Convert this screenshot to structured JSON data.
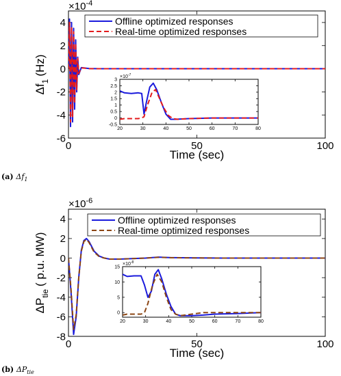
{
  "chart_data": [
    {
      "type": "line",
      "caption_label": "(a)",
      "caption_text": "Δf",
      "caption_sub": "1",
      "xlabel": "Time (sec)",
      "ylabel_main": "Δf",
      "ylabel_sub": "1",
      "ylabel_unit": "(Hz)",
      "exponent_base": "×10",
      "exponent_power": "-4",
      "xlim": [
        0,
        100
      ],
      "ylim": [
        -6,
        5
      ],
      "x_ticks": [
        "0",
        "50",
        "100"
      ],
      "y_ticks": [
        "4",
        "2",
        "0",
        "-2",
        "-4",
        "-6"
      ],
      "y_tick_values": [
        4,
        2,
        0,
        -2,
        -4,
        -6
      ],
      "legend_position": "top-right",
      "series": [
        {
          "name": "Offline optimized responses",
          "color": "#1a1adc",
          "dash": "solid",
          "x": [
            0,
            0.4,
            0.8,
            1.2,
            1.6,
            2.0,
            2.4,
            2.8,
            3.2,
            3.6,
            4.0,
            5,
            8,
            12,
            20,
            30,
            40,
            60,
            80,
            100
          ],
          "y": [
            0,
            4.3,
            -5.0,
            4.0,
            -4.6,
            3.5,
            -3.5,
            2.5,
            -2.0,
            1.0,
            -0.5,
            0.1,
            0.02,
            0,
            0,
            0,
            0,
            0,
            0,
            0
          ]
        },
        {
          "name": "Real-time optimized responses",
          "color": "#e31a1c",
          "dash": "dashed",
          "x": [
            0,
            0.4,
            0.8,
            1.2,
            1.6,
            2.0,
            2.4,
            2.8,
            3.2,
            3.6,
            4.0,
            5,
            8,
            12,
            20,
            30,
            40,
            60,
            80,
            100
          ],
          "y": [
            0,
            4.0,
            -4.6,
            3.6,
            -4.2,
            3.2,
            -3.0,
            2.2,
            -1.8,
            0.9,
            -0.4,
            0.08,
            0.01,
            0,
            0,
            0,
            0,
            0,
            0,
            0
          ]
        }
      ],
      "inset": {
        "xlim": [
          20,
          80
        ],
        "ylim": [
          -0.5,
          3
        ],
        "x_ticks": [
          "20",
          "30",
          "40",
          "50",
          "60",
          "70",
          "80"
        ],
        "x_tick_values": [
          20,
          30,
          40,
          50,
          60,
          70,
          80
        ],
        "y_ticks": [
          "3",
          "2.5",
          "2",
          "1.5",
          "1",
          "0.5",
          "0",
          "-0.5"
        ],
        "y_tick_values": [
          3,
          2.5,
          2,
          1.5,
          1,
          0.5,
          0,
          -0.5
        ],
        "exponent_base": "×10",
        "exponent_power": "-7",
        "series": [
          {
            "color": "#1a1adc",
            "dash": "solid",
            "x": [
              20,
              22,
              25,
              28,
              29.5,
              30.5,
              31.5,
              33,
              34.5,
              36,
              38,
              40,
              42,
              44,
              50,
              60,
              70,
              80
            ],
            "y": [
              2.1,
              1.95,
              1.9,
              1.95,
              1.9,
              0.3,
              1.2,
              2.4,
              2.7,
              2.2,
              1.2,
              0.3,
              -0.1,
              -0.1,
              -0.05,
              0,
              0,
              0
            ]
          },
          {
            "color": "#e31a1c",
            "dash": "dashed",
            "x": [
              20,
              22,
              25,
              28,
              29.5,
              30.5,
              32,
              34,
              35.5,
              37,
              39,
              41,
              43,
              45,
              50,
              60,
              70,
              80
            ],
            "y": [
              -0.1,
              -0.05,
              -0.05,
              -0.05,
              0,
              0.1,
              1.0,
              2.0,
              2.2,
              1.6,
              0.8,
              0.2,
              -0.05,
              -0.1,
              -0.05,
              0,
              0,
              0
            ]
          }
        ]
      }
    },
    {
      "type": "line",
      "caption_label": "(b)",
      "caption_text": "ΔP",
      "caption_sub": "tie",
      "xlabel": "Time (sec)",
      "ylabel_main": "ΔP",
      "ylabel_sub": "tie",
      "ylabel_unit": "( p.u. MW)",
      "exponent_base": "×10",
      "exponent_power": "-6",
      "xlim": [
        0,
        100
      ],
      "ylim": [
        -8,
        5
      ],
      "x_ticks": [
        "0",
        "50",
        "100"
      ],
      "y_ticks": [
        "4",
        "2",
        "0",
        "-2",
        "-4",
        "-6",
        "-8"
      ],
      "y_tick_values": [
        4,
        2,
        0,
        -2,
        -4,
        -6,
        -8
      ],
      "legend_position": "top-right",
      "series": [
        {
          "name": "Offline optimized responses",
          "color": "#1a1adc",
          "dash": "solid",
          "x": [
            0,
            1,
            2,
            3,
            4,
            5,
            6,
            7,
            8,
            9,
            10,
            12,
            14,
            16,
            20,
            25,
            30,
            35,
            40,
            50,
            60,
            80,
            100
          ],
          "y": [
            0,
            -3.5,
            -7.8,
            -6.0,
            -2.0,
            0.8,
            1.8,
            2.0,
            1.7,
            1.2,
            0.7,
            0.2,
            0,
            -0.1,
            -0.1,
            -0.05,
            0,
            0.1,
            0.05,
            0.02,
            0,
            0,
            0
          ]
        },
        {
          "name": "Real-time optimized responses",
          "color": "#8b4513",
          "dash": "dashed",
          "x": [
            0,
            1,
            2,
            3,
            4,
            5,
            6,
            7,
            8,
            9,
            10,
            12,
            14,
            16,
            20,
            25,
            30,
            35,
            40,
            50,
            60,
            80,
            100
          ],
          "y": [
            0,
            -3.2,
            -7.3,
            -5.8,
            -2.0,
            0.7,
            1.7,
            1.9,
            1.6,
            1.1,
            0.6,
            0.15,
            0,
            -0.1,
            -0.1,
            -0.05,
            0,
            0.08,
            0.04,
            0.02,
            0,
            0,
            0
          ]
        }
      ],
      "inset": {
        "xlim": [
          20,
          80
        ],
        "ylim": [
          -1.5,
          15
        ],
        "x_ticks": [
          "20",
          "30",
          "40",
          "50",
          "60",
          "70",
          "80"
        ],
        "x_tick_values": [
          20,
          30,
          40,
          50,
          60,
          70,
          80
        ],
        "y_ticks": [
          "15",
          "10",
          "5",
          "0"
        ],
        "y_tick_values": [
          15,
          10,
          5,
          0
        ],
        "exponent_base": "×10",
        "exponent_power": "-8",
        "series": [
          {
            "color": "#1a1adc",
            "dash": "solid",
            "x": [
              20,
              22,
              25,
              28,
              29.5,
              31,
              32.5,
              34,
              35.5,
              37,
              39,
              41,
              43,
              45,
              50,
              55,
              60,
              70,
              80
            ],
            "y": [
              12.5,
              11.8,
              12,
              12,
              9,
              5,
              7,
              12.5,
              14,
              11,
              6,
              2,
              -0.5,
              -1,
              -1,
              -0.8,
              -0.5,
              -0.3,
              0
            ]
          },
          {
            "color": "#8b4513",
            "dash": "dashed",
            "x": [
              20,
              22,
              25,
              28,
              29.5,
              31,
              33,
              35,
              37,
              39,
              41,
              43,
              45,
              50,
              55,
              60,
              70,
              80
            ],
            "y": [
              -0.8,
              -0.5,
              -0.5,
              -0.5,
              0,
              3,
              9,
              12.5,
              10,
              5,
              1,
              -0.5,
              -1,
              -0.5,
              0,
              0,
              0,
              0
            ]
          }
        ]
      }
    }
  ]
}
